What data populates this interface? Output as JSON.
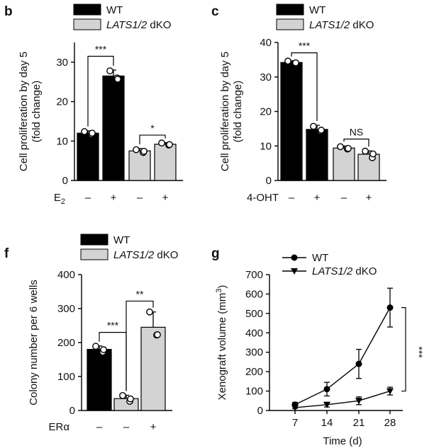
{
  "colors": {
    "wt": "#000000",
    "dko": "#d3d3d3",
    "stroke": "#000000"
  },
  "chart_data": [
    {
      "panel": "b",
      "type": "bar",
      "legend": [
        "WT",
        "LATS1/2 dKO"
      ],
      "ylabel_line1": "Cell proliferation by day 5",
      "ylabel_line2": "(fold change)",
      "ylim": [
        0,
        35
      ],
      "yticks": [
        "0",
        "10",
        "20",
        "30"
      ],
      "condition_label": "E",
      "condition_sub": "2",
      "condition_values": [
        "–",
        "+",
        "–",
        "+"
      ],
      "bars": [
        {
          "group": "WT",
          "value": 12,
          "err": 0.6,
          "points": [
            12.4,
            11.7,
            12.0
          ]
        },
        {
          "group": "WT",
          "value": 26.5,
          "err": 1.5,
          "points": [
            27.8,
            26.0,
            25.7
          ]
        },
        {
          "group": "LATS1/2 dKO",
          "value": 7.5,
          "err": 0.6,
          "points": [
            7.8,
            7.1,
            7.4
          ]
        },
        {
          "group": "LATS1/2 dKO",
          "value": 9.2,
          "err": 0.4,
          "points": [
            9.5,
            9.0,
            9.1
          ]
        }
      ],
      "significance": [
        {
          "label": "***",
          "from": 0,
          "to": 1,
          "y": 31.5
        },
        {
          "label": "*",
          "from": 2,
          "to": 3,
          "y": 11.5
        }
      ]
    },
    {
      "panel": "c",
      "type": "bar",
      "legend": [
        "WT",
        "LATS1/2 dKO"
      ],
      "ylabel_line1": "Cell proliferation by day 5",
      "ylabel_line2": "(fold change)",
      "ylim": [
        0,
        40
      ],
      "yticks": [
        "0",
        "10",
        "20",
        "30",
        "40"
      ],
      "condition_label": "4-OHT",
      "condition_values": [
        "–",
        "+",
        "–",
        "+"
      ],
      "bars": [
        {
          "group": "WT",
          "value": 34.2,
          "err": 0.5,
          "points": [
            34.6,
            34.0,
            34.1
          ]
        },
        {
          "group": "WT",
          "value": 14.8,
          "err": 1.2,
          "points": [
            15.7,
            14.3,
            14.6
          ]
        },
        {
          "group": "LATS1/2 dKO",
          "value": 9.4,
          "err": 0.6,
          "points": [
            9.8,
            9.1,
            9.3
          ]
        },
        {
          "group": "LATS1/2 dKO",
          "value": 7.6,
          "err": 1.0,
          "points": [
            8.5,
            6.6,
            7.7
          ]
        }
      ],
      "significance": [
        {
          "label": "***",
          "from": 0,
          "to": 1,
          "y": 37.0
        },
        {
          "label": "NS",
          "from": 2,
          "to": 3,
          "y": 12.0
        }
      ]
    },
    {
      "panel": "f",
      "type": "bar",
      "legend": [
        "WT",
        "LATS1/2 dKO"
      ],
      "ylabel_line1": "Colony number per 6 wells",
      "ylim": [
        0,
        400
      ],
      "yticks": [
        "0",
        "100",
        "200",
        "300",
        "400"
      ],
      "condition_label": "ERα",
      "condition_values": [
        "–",
        "–",
        "+"
      ],
      "bars": [
        {
          "group": "WT",
          "value": 180,
          "err": 10,
          "points": [
            189,
            172,
            179
          ]
        },
        {
          "group": "LATS1/2 dKO",
          "value": 35,
          "err": 10,
          "points": [
            44,
            27,
            34
          ]
        },
        {
          "group": "LATS1/2 dKO",
          "value": 245,
          "err": 45,
          "points": [
            290,
            222,
            223
          ]
        }
      ],
      "significance": [
        {
          "label": "***",
          "from": 0,
          "to": 1,
          "y": 230
        },
        {
          "label": "**",
          "from": 1,
          "to": 2,
          "y": 322
        }
      ]
    },
    {
      "panel": "g",
      "type": "line",
      "legend": [
        "WT",
        "LATS1/2 dKO"
      ],
      "xlabel": "Time (d)",
      "ylabel": "Xenograft volume (mm",
      "ylabel_sup": "3",
      "ylabel_end": ")",
      "x": [
        7,
        14,
        21,
        28
      ],
      "xticks": [
        "7",
        "14",
        "21",
        "28"
      ],
      "ylim": [
        0,
        700
      ],
      "yticks": [
        "0",
        "100",
        "200",
        "300",
        "400",
        "500",
        "600",
        "700"
      ],
      "series": [
        {
          "name": "WT",
          "marker": "circle",
          "values": [
            30,
            110,
            240,
            530
          ],
          "err": [
            12,
            35,
            75,
            100
          ]
        },
        {
          "name": "LATS1/2 dKO",
          "marker": "triangle-down",
          "values": [
            15,
            30,
            50,
            100
          ],
          "err": [
            5,
            12,
            20,
            20
          ]
        }
      ],
      "significance": [
        {
          "label": "***"
        }
      ]
    }
  ]
}
